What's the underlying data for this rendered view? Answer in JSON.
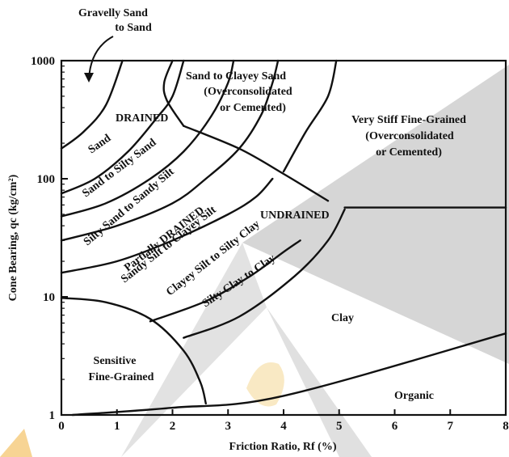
{
  "chart_data": {
    "type": "scatter",
    "title": "",
    "xlabel": "Friction Ratio, Rf (%)",
    "ylabel": "Cone Bearing, qc (kg/cm²)",
    "xlim": [
      0,
      8
    ],
    "ylim": [
      1,
      1000
    ],
    "y_scale": "log",
    "x_ticks": [
      "0",
      "1",
      "2",
      "3",
      "4",
      "5",
      "6",
      "7",
      "8"
    ],
    "y_ticks": [
      "1",
      "10",
      "100",
      "1000"
    ],
    "grid": false,
    "zones": [
      {
        "label": "Sand"
      },
      {
        "label": "Sand to Silty Sand"
      },
      {
        "label": "Silty Sand to Sandy Silt"
      },
      {
        "label": "Partially DRAINED"
      },
      {
        "label": "Sandy Silt to Clayey Silt"
      },
      {
        "label": "Clayey Silt to Silty Clay"
      },
      {
        "label": "Silty Clay to Clay"
      },
      {
        "label": "Clay"
      },
      {
        "label": "Organic"
      },
      {
        "label": "Sensitive"
      },
      {
        "label": "Fine-Grained"
      },
      {
        "label": "Sand to Clayey Sand"
      },
      {
        "label": "(Overconsolidated"
      },
      {
        "label": "or Cemented)"
      },
      {
        "label": "Very Stiff Fine-Grained"
      },
      {
        "label": "(Overconsolidated"
      },
      {
        "label": "or Cemented)"
      },
      {
        "label": "DRAINED"
      },
      {
        "label": "UNDRAINED"
      }
    ],
    "annotation": {
      "line1": "Gravelly Sand",
      "line2": "to Sand"
    },
    "boundaries": [
      {
        "name": "gravelly-sand-sand",
        "points": [
          [
            0.0,
            180
          ],
          [
            0.4,
            250
          ],
          [
            0.8,
            420
          ],
          [
            1.1,
            1000
          ]
        ]
      },
      {
        "name": "sand-silty-sand",
        "points": [
          [
            0.0,
            75
          ],
          [
            0.6,
            100
          ],
          [
            1.2,
            170
          ],
          [
            1.7,
            320
          ],
          [
            2.0,
            500
          ],
          [
            2.2,
            1000
          ]
        ]
      },
      {
        "name": "silty-sand-sandy-silt",
        "points": [
          [
            0.0,
            48
          ],
          [
            0.8,
            62
          ],
          [
            1.6,
            100
          ],
          [
            2.2,
            170
          ],
          [
            2.7,
            340
          ],
          [
            3.0,
            650
          ],
          [
            3.1,
            1000
          ]
        ]
      },
      {
        "name": "sandy-silt-partially-drained",
        "points": [
          [
            0.0,
            30
          ],
          [
            1.0,
            40
          ],
          [
            2.0,
            62
          ],
          [
            2.6,
            100
          ],
          [
            3.2,
            180
          ],
          [
            3.6,
            350
          ],
          [
            3.8,
            650
          ],
          [
            3.9,
            1000
          ]
        ]
      },
      {
        "name": "sandy-silt-clayey-silt",
        "points": [
          [
            0.0,
            16
          ],
          [
            1.0,
            20
          ],
          [
            2.0,
            30
          ],
          [
            3.0,
            50
          ],
          [
            3.5,
            70
          ],
          [
            3.8,
            100
          ]
        ]
      },
      {
        "name": "clayey-silt-silty-clay",
        "points": [
          [
            1.6,
            6.2
          ],
          [
            2.6,
            9.2
          ],
          [
            3.4,
            15
          ],
          [
            4.0,
            24
          ],
          [
            4.3,
            30
          ]
        ]
      },
      {
        "name": "silty-clay-clay",
        "points": [
          [
            2.2,
            4.5
          ],
          [
            3.2,
            6.8
          ],
          [
            4.2,
            15
          ],
          [
            4.8,
            30
          ],
          [
            5.1,
            55
          ]
        ]
      },
      {
        "name": "undrained-boundary",
        "points": [
          [
            5.1,
            57
          ],
          [
            8.0,
            57
          ]
        ]
      },
      {
        "name": "sand-clayey-sand-left",
        "points": [
          [
            2.0,
            1000
          ],
          [
            1.85,
            650
          ],
          [
            1.9,
            460
          ],
          [
            2.2,
            280
          ]
        ]
      },
      {
        "name": "drained-undrained-divider",
        "points": [
          [
            2.2,
            280
          ],
          [
            3.2,
            180
          ],
          [
            4.0,
            110
          ],
          [
            4.8,
            65
          ]
        ]
      },
      {
        "name": "sand-clayey-sand-right",
        "points": [
          [
            4.95,
            1000
          ],
          [
            4.8,
            500
          ],
          [
            4.4,
            250
          ],
          [
            4.0,
            115
          ]
        ]
      },
      {
        "name": "sensitive-fine-grained",
        "points": [
          [
            0.0,
            9.8
          ],
          [
            0.8,
            9.0
          ],
          [
            1.6,
            6.5
          ],
          [
            2.2,
            3.5
          ],
          [
            2.5,
            1.9
          ],
          [
            2.6,
            1.25
          ]
        ]
      },
      {
        "name": "organic-boundary",
        "points": [
          [
            0.2,
            1.0
          ],
          [
            2.0,
            1.15
          ],
          [
            4.0,
            1.45
          ],
          [
            8.0,
            4.9
          ]
        ]
      }
    ]
  }
}
